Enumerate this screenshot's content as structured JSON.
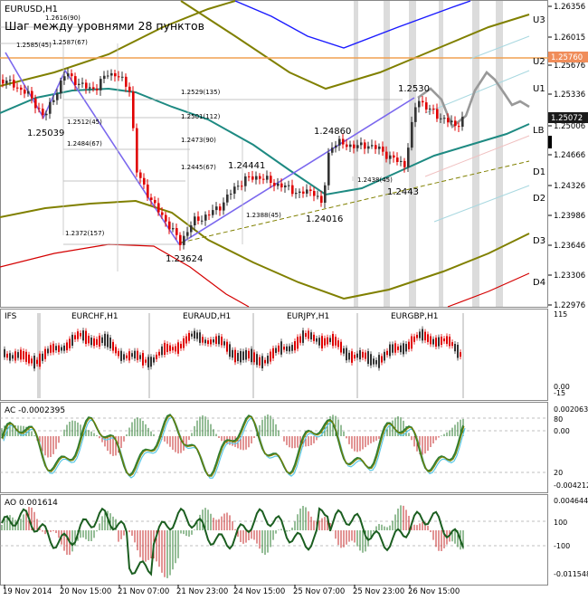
{
  "symbol": "EURUSD,H1",
  "step_note": "Шаг между уровнями 28 пунктов",
  "colors": {
    "bull": "#333333",
    "bear": "#e00000",
    "ma": "#1e8a82",
    "olive": "#808000",
    "blue": "#1a1aff",
    "red": "#d40000",
    "purple": "#7b68ee",
    "orange": "#f0a050",
    "price_tag": "#f08d5a",
    "axis_tag": "#1a1a1a"
  },
  "price_axis": [
    "1.26356",
    "1.26015",
    "1.25676",
    "1.25336",
    "1.25006",
    "1.24666",
    "1.24326",
    "1.23986",
    "1.23646",
    "1.23306",
    "1.22976"
  ],
  "price_tags": {
    "current": "1.25072",
    "level": "1.25760"
  },
  "level_labels": [
    "U3",
    "U2",
    "U1",
    "LB",
    "D1",
    "D2",
    "D3",
    "D4"
  ],
  "annotations": {
    "peaks": [
      "1.25039",
      "1.23624",
      "1.24441",
      "1.24860",
      "1.24016",
      "1.2443",
      "1.2530"
    ],
    "fib_boxes": [
      "1.2616(90)",
      "1.2587(67)",
      "1.2585(45)",
      "1.2529(135)",
      "1.2501(112)",
      "1.2512(45)",
      "1.2484(67)",
      "1.2473(90)",
      "1.2445(67)",
      "1.2438(45)",
      "1.2388(45)",
      "1.2372(157)"
    ]
  },
  "sub_charts": [
    "EURCHF,H1",
    "EURAUD,H1",
    "EURJPY,H1",
    "EURGBP,H1"
  ],
  "ifs": {
    "label": "IFS",
    "axis": [
      "115",
      "0.00",
      "-15"
    ]
  },
  "ac": {
    "label": "AC -0.0002395",
    "axis": [
      "0.002063",
      "80",
      "0.00",
      "20",
      "-0.004212"
    ]
  },
  "ao": {
    "label": "AO 0.001614",
    "axis": [
      "0.004644",
      "100",
      "-100",
      "-0.011548"
    ]
  },
  "time_axis": [
    "19 Nov 2014",
    "20 Nov 15:00",
    "21 Nov 07:00",
    "21 Nov 23:00",
    "24 Nov 15:00",
    "25 Nov 07:00",
    "25 Nov 23:00",
    "26 Nov 15:00"
  ]
}
